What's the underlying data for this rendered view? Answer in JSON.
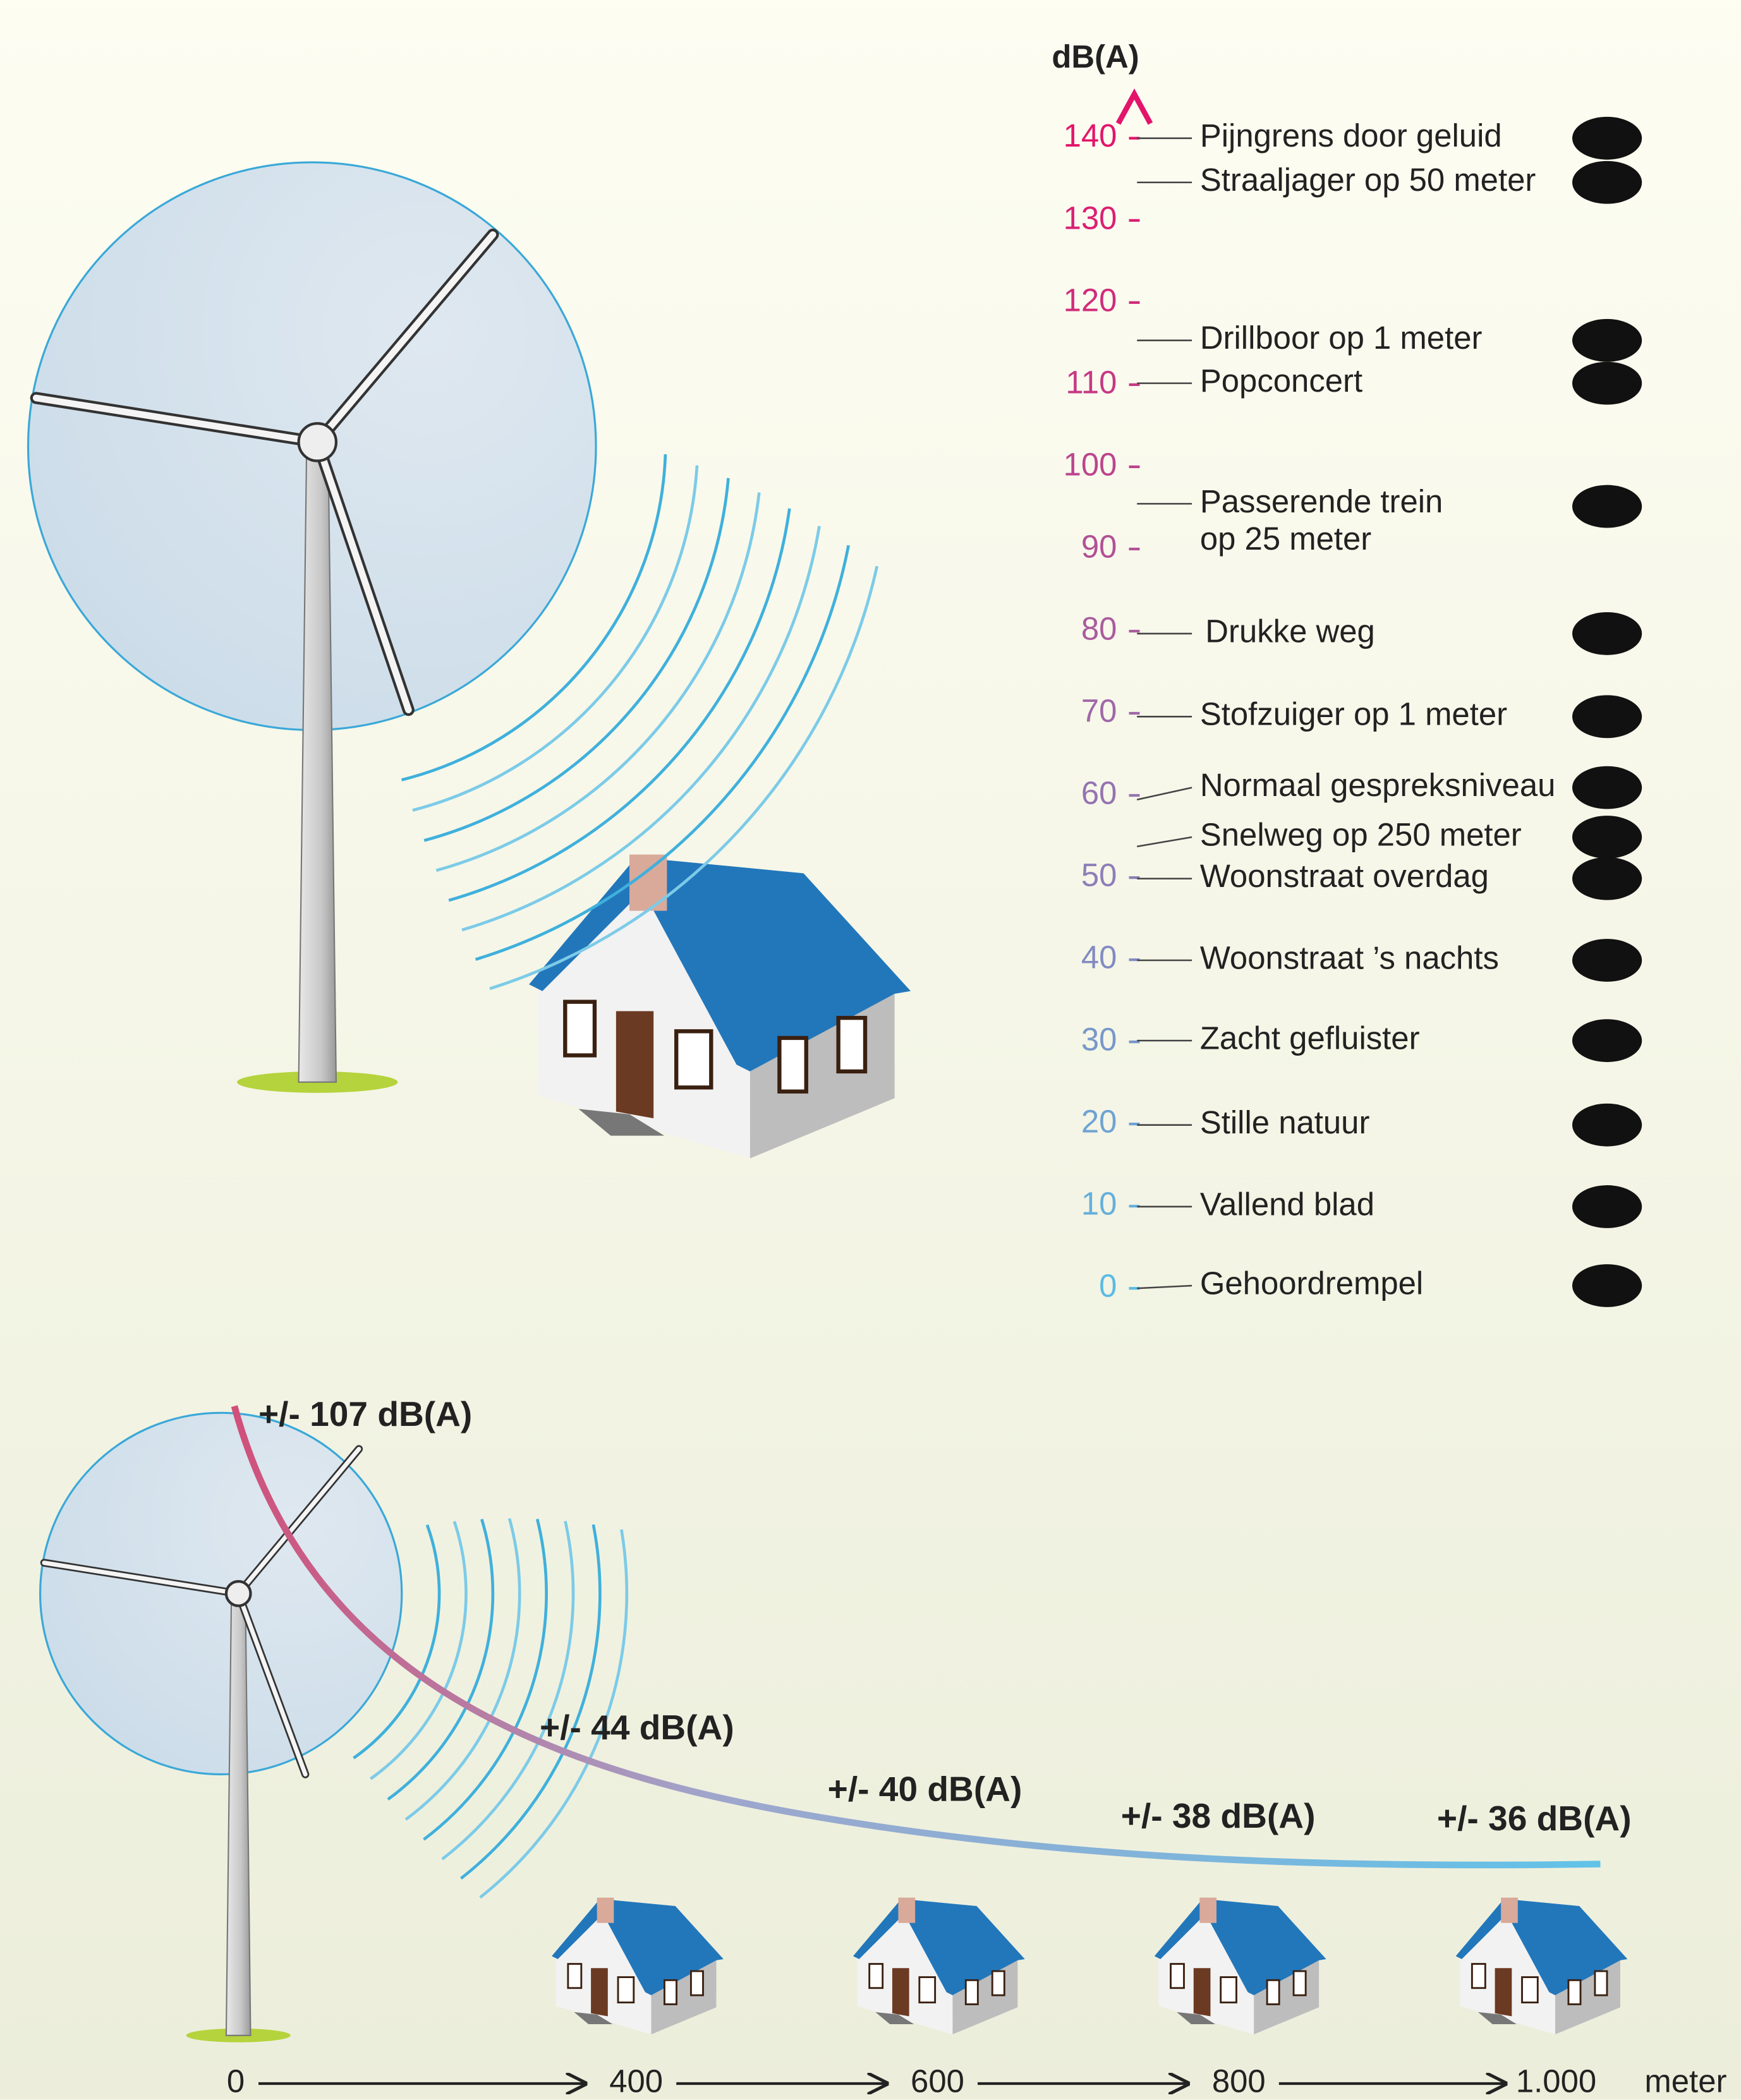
{
  "scale": {
    "unit": "dB(A)",
    "ticks": [
      0,
      10,
      20,
      30,
      40,
      50,
      60,
      70,
      80,
      90,
      100,
      110,
      120,
      130,
      140
    ]
  },
  "sources": [
    [
      "Pijngrens door geluid"
    ],
    [
      "Straaljager op 50 meter"
    ],
    [
      "Drillboor op 1 meter"
    ],
    [
      "Popconcert"
    ],
    [
      "Passerende trein",
      "op 25 meter"
    ],
    [
      "Drukke weg"
    ],
    [
      "Stofzuiger op 1 meter"
    ],
    [
      "Normaal gespreksniveau"
    ],
    [
      "Snelweg op 250 meter"
    ],
    [
      "Woonstraat overdag"
    ],
    [
      "Woonstraat ’s nachts"
    ],
    [
      "Zacht gefluister"
    ],
    [
      "Stille natuur"
    ],
    [
      "Vallend blad"
    ],
    [
      "Gehoordrempel"
    ]
  ],
  "distance": {
    "levels": [
      "+/- 107 dB(A)",
      "+/- 44 dB(A)",
      "+/- 40 dB(A)",
      "+/- 38 dB(A)",
      "+/- 36 dB(A)"
    ],
    "axis": [
      "0",
      "400",
      "600",
      "800",
      "1.000"
    ],
    "unit": "meter"
  }
}
